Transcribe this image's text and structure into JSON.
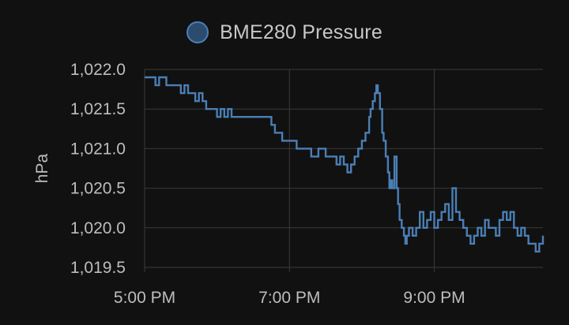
{
  "chart_data": {
    "type": "line",
    "legend": {
      "placement": "top-center"
    },
    "grid": true,
    "ylabel": "hPa",
    "xlabel": "",
    "ylim": [
      1019.5,
      1022.0
    ],
    "xlim_hours": [
      17.0,
      22.5
    ],
    "y_ticks": [
      {
        "value": 1022.0,
        "label": "1,022.0"
      },
      {
        "value": 1021.5,
        "label": "1,021.5"
      },
      {
        "value": 1021.0,
        "label": "1,021.0"
      },
      {
        "value": 1020.5,
        "label": "1,020.5"
      },
      {
        "value": 1020.0,
        "label": "1,020.0"
      },
      {
        "value": 1019.5,
        "label": "1,019.5"
      }
    ],
    "x_ticks": [
      {
        "value": 17,
        "label": "5:00 PM"
      },
      {
        "value": 19,
        "label": "7:00 PM"
      },
      {
        "value": 21,
        "label": "9:00 PM"
      }
    ],
    "series": [
      {
        "name": "BME280 Pressure",
        "color": "#4a7fb5",
        "x": [
          17.0,
          17.1,
          17.15,
          17.2,
          17.3,
          17.45,
          17.5,
          17.55,
          17.6,
          17.7,
          17.75,
          17.8,
          17.85,
          17.95,
          18.0,
          18.05,
          18.1,
          18.15,
          18.2,
          18.35,
          18.4,
          18.45,
          18.5,
          18.6,
          18.75,
          18.8,
          18.85,
          18.9,
          18.95,
          19.0,
          19.1,
          19.2,
          19.3,
          19.35,
          19.4,
          19.5,
          19.6,
          19.65,
          19.7,
          19.75,
          19.8,
          19.85,
          19.9,
          19.95,
          20.0,
          20.05,
          20.1,
          20.12,
          20.15,
          20.18,
          20.2,
          20.22,
          20.25,
          20.28,
          20.3,
          20.33,
          20.36,
          20.38,
          20.4,
          20.42,
          20.45,
          20.48,
          20.5,
          20.52,
          20.55,
          20.58,
          20.6,
          20.62,
          20.65,
          20.7,
          20.75,
          20.8,
          20.85,
          20.9,
          20.95,
          21.0,
          21.05,
          21.1,
          21.15,
          21.2,
          21.25,
          21.3,
          21.35,
          21.4,
          21.45,
          21.5,
          21.55,
          21.6,
          21.65,
          21.7,
          21.75,
          21.8,
          21.85,
          21.9,
          21.95,
          22.0,
          22.05,
          22.1,
          22.15,
          22.2,
          22.25,
          22.3,
          22.35,
          22.4,
          22.45,
          22.5
        ],
        "values": [
          1021.9,
          1021.9,
          1021.8,
          1021.9,
          1021.8,
          1021.8,
          1021.7,
          1021.8,
          1021.7,
          1021.6,
          1021.7,
          1021.6,
          1021.5,
          1021.5,
          1021.4,
          1021.5,
          1021.4,
          1021.5,
          1021.4,
          1021.4,
          1021.4,
          1021.4,
          1021.4,
          1021.4,
          1021.3,
          1021.2,
          1021.2,
          1021.1,
          1021.1,
          1021.1,
          1021.0,
          1021.0,
          1020.9,
          1020.9,
          1021.0,
          1020.9,
          1020.9,
          1020.8,
          1020.9,
          1020.8,
          1020.7,
          1020.8,
          1020.9,
          1021.0,
          1021.1,
          1021.2,
          1021.4,
          1021.5,
          1021.6,
          1021.7,
          1021.8,
          1021.7,
          1021.5,
          1021.2,
          1021.1,
          1020.9,
          1020.7,
          1020.5,
          1020.6,
          1020.5,
          1020.9,
          1020.5,
          1020.3,
          1020.1,
          1020.0,
          1019.9,
          1019.8,
          1019.9,
          1020.0,
          1019.9,
          1020.0,
          1020.2,
          1020.0,
          1020.1,
          1020.2,
          1020.0,
          1020.1,
          1020.2,
          1020.3,
          1020.1,
          1020.5,
          1020.2,
          1020.1,
          1020.0,
          1019.9,
          1019.8,
          1019.9,
          1020.0,
          1019.9,
          1020.1,
          1020.0,
          1020.0,
          1019.9,
          1020.1,
          1020.2,
          1020.1,
          1020.2,
          1020.0,
          1019.9,
          1020.0,
          1019.9,
          1019.8,
          1019.8,
          1019.7,
          1019.8,
          1019.9
        ]
      }
    ]
  }
}
